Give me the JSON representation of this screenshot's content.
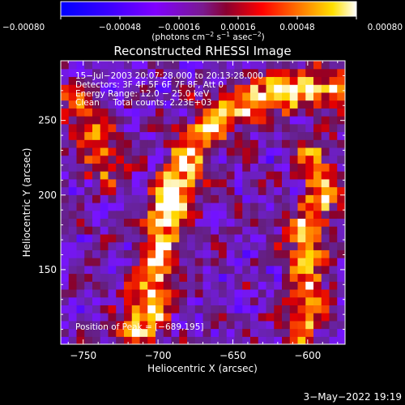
{
  "chart_data": {
    "type": "heatmap",
    "title": "Reconstructed RHESSI Image",
    "xlabel": "Heliocentric X (arcsec)",
    "ylabel": "Heliocentric Y (arcsec)",
    "xlim": [
      -765,
      -575
    ],
    "ylim": [
      100,
      290
    ],
    "x_ticks": [
      -750,
      -700,
      -650,
      -600
    ],
    "y_ticks": [
      150,
      200,
      250
    ],
    "x_tick_labels": [
      "−750",
      "−700",
      "−650",
      "−600"
    ],
    "y_tick_labels": [
      "150",
      "200",
      "250"
    ],
    "colorbar": {
      "range": [
        -0.0008,
        0.0008
      ],
      "ticks": [
        -0.0008,
        -0.00048,
        -0.00016,
        0.00016,
        0.00048,
        0.0008
      ],
      "tick_labels": [
        "−0.00080",
        "−0.00048",
        "−0.00016",
        "0.00016",
        "0.00048",
        "0.00080"
      ],
      "unit_label": "(photons cm",
      "unit_exp1": "−2",
      "unit_mid": " s",
      "unit_exp2": "−1",
      "unit_mid2": " asec",
      "unit_exp3": "−2",
      "unit_end": ")"
    },
    "annotations": [
      "15−Jul−2003 20:07:28.000 to 20:13:28.000",
      "Detectors: 3F 4F 5F 6F 7F 8F, Att 0",
      "Energy Range: 12.0 − 25.0 keV",
      "Clean     Total counts: 2.23E+03"
    ],
    "peak_label": "Position of Peak = [−689,195]",
    "peak": [
      -689,
      195
    ],
    "emission_ridges": [
      {
        "points": [
          [
            -712,
            110
          ],
          [
            -704,
            135
          ],
          [
            -700,
            165
          ],
          [
            -693,
            193
          ],
          [
            -684,
            215
          ],
          [
            -673,
            238
          ],
          [
            -658,
            255
          ],
          [
            -640,
            262
          ],
          [
            -622,
            268
          ],
          [
            -600,
            272
          ],
          [
            -582,
            270
          ]
        ],
        "peak_value": 0.0008
      },
      {
        "points": [
          [
            -606,
            110
          ],
          [
            -598,
            140
          ],
          [
            -604,
            170
          ],
          [
            -590,
            200
          ],
          [
            -596,
            225
          ]
        ],
        "peak_value": 0.0006
      },
      {
        "points": [
          [
            -756,
            265
          ],
          [
            -752,
            248
          ],
          [
            -740,
            238
          ],
          [
            -735,
            220
          ]
        ],
        "peak_value": 0.0005
      }
    ]
  },
  "footer": {
    "date": "3−May−2022 19:19"
  }
}
